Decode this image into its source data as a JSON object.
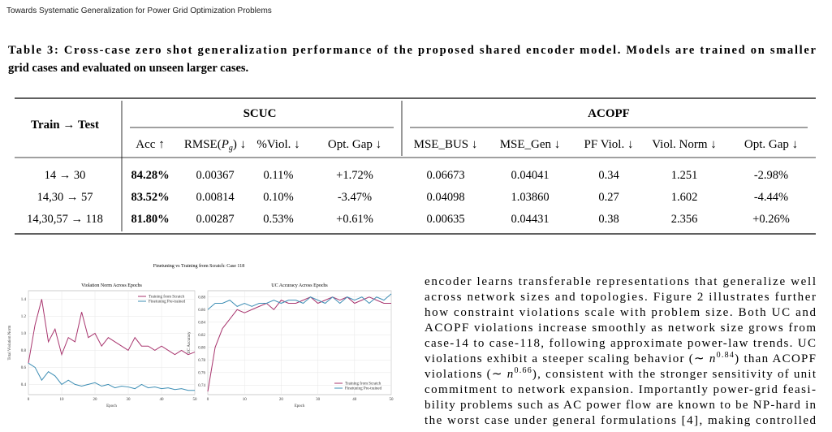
{
  "header": "Towards Systematic Generalization for Power Grid Optimization Problems",
  "table": {
    "caption": [
      "Table 3: Cross-case zero shot generalization performance of the proposed shared encoder model. Models are trained on smaller",
      "grid cases and evaluated on unseen larger cases."
    ],
    "row_header": "Train → Test",
    "groups": [
      "SCUC",
      "ACOPF"
    ],
    "columns": [
      "Acc ↑",
      [
        "RMSE(",
        "P",
        "g",
        ") ↓"
      ],
      "%Viol. ↓",
      "Opt. Gap ↓",
      "MSE_BUS ↓",
      "MSE_Gen ↓",
      "PF Viol. ↓",
      "Viol. Norm ↓",
      "Opt. Gap ↓"
    ],
    "rows": [
      [
        "14 → 30",
        "84.28%",
        "0.00367",
        "0.11%",
        "+1.72%",
        "0.06673",
        "0.04041",
        "0.34",
        "1.251",
        "-2.98%"
      ],
      [
        "14,30 → 57",
        "83.52%",
        "0.00814",
        "0.10%",
        "-3.47%",
        "0.04098",
        "1.03860",
        "0.27",
        "1.602",
        "-4.44%"
      ],
      [
        "14,30,57 → 118",
        "81.80%",
        "0.00287",
        "0.53%",
        "+0.61%",
        "0.00635",
        "0.04431",
        "0.38",
        "2.356",
        "+0.26%"
      ]
    ]
  },
  "figure_title": "Finetuning vs Training from Scratch: Case 118",
  "chart_data": [
    {
      "type": "line",
      "title": "Violation Norm Across Epochs",
      "xlabel": "Epoch",
      "ylabel": "Total Violation Norm",
      "x": [
        0,
        2,
        4,
        6,
        8,
        10,
        12,
        14,
        16,
        18,
        20,
        22,
        24,
        26,
        28,
        30,
        32,
        34,
        36,
        38,
        40,
        42,
        44,
        46,
        48,
        50
      ],
      "series": [
        {
          "name": "Training from Scratch",
          "color": "#a8356e",
          "values": [
            0.65,
            1.1,
            1.4,
            0.9,
            1.05,
            0.75,
            0.95,
            0.9,
            1.25,
            0.95,
            1.0,
            0.85,
            0.95,
            0.9,
            0.85,
            0.8,
            0.95,
            0.85,
            0.85,
            0.8,
            0.85,
            0.8,
            0.75,
            0.8,
            0.75,
            0.78
          ]
        },
        {
          "name": "Finetuning Pre-trained",
          "color": "#3f8fb5",
          "values": [
            0.65,
            0.6,
            0.45,
            0.55,
            0.5,
            0.4,
            0.45,
            0.4,
            0.38,
            0.4,
            0.42,
            0.38,
            0.4,
            0.36,
            0.38,
            0.37,
            0.35,
            0.4,
            0.36,
            0.37,
            0.35,
            0.36,
            0.34,
            0.35,
            0.33,
            0.33
          ]
        }
      ],
      "xlim": [
        0,
        50
      ],
      "ylim": [
        0.28,
        1.5
      ],
      "xticks": [
        0,
        10,
        20,
        30,
        40,
        50
      ],
      "yticks": [
        0.4,
        0.6,
        0.8,
        {
          "value": 1.0,
          "label": "1.0"
        },
        1.2,
        1.4
      ],
      "grid": true,
      "legend": "upper right"
    },
    {
      "type": "line",
      "title": "UC Accuracy Across Epochs",
      "xlabel": "Epoch",
      "ylabel": "UC Accuracy",
      "x": [
        0,
        2,
        4,
        6,
        8,
        10,
        12,
        14,
        16,
        18,
        20,
        22,
        24,
        26,
        28,
        30,
        32,
        34,
        36,
        38,
        40,
        42,
        44,
        46,
        48,
        50
      ],
      "series": [
        {
          "name": "Training from Scratch",
          "color": "#a8356e",
          "values": [
            0.73,
            0.8,
            0.83,
            0.845,
            0.86,
            0.855,
            0.86,
            0.865,
            0.87,
            0.86,
            0.875,
            0.87,
            0.87,
            0.875,
            0.88,
            0.87,
            0.875,
            0.88,
            0.875,
            0.88,
            0.87,
            0.875,
            0.88,
            0.875,
            0.87,
            0.87
          ]
        },
        {
          "name": "Finetuning Pre-trained",
          "color": "#3f8fb5",
          "values": [
            0.86,
            0.87,
            0.87,
            0.875,
            0.865,
            0.87,
            0.865,
            0.87,
            0.87,
            0.875,
            0.87,
            0.875,
            0.875,
            0.87,
            0.88,
            0.875,
            0.87,
            0.88,
            0.87,
            0.88,
            0.875,
            0.88,
            0.87,
            0.88,
            0.875,
            0.885
          ]
        }
      ],
      "xlim": [
        0,
        50
      ],
      "ylim": [
        0.725,
        0.89
      ],
      "xticks": [
        0,
        10,
        20,
        30,
        40,
        50
      ],
      "yticks": [
        0.74,
        0.76,
        0.78,
        {
          "value": 0.8,
          "label": "0.80"
        },
        0.82,
        0.84,
        0.86,
        0.88
      ],
      "grid": true,
      "legend": "lower right"
    }
  ],
  "body": {
    "lines": [
      "encoder learns transferable representations that generalize well",
      "across network sizes and topologies. Figure 2 illustrates further",
      "how constraint violations scale with problem size. Both UC and",
      "ACOPF violations increase smoothly as network size grows from",
      "case-14 to case-118, following approximate power-law trends. UC",
      [
        "violations exhibit a steeper scaling behavior (∼ ",
        "n",
        "0.84",
        ") than ACOPF"
      ],
      [
        "violations (∼ ",
        "n",
        "0.66",
        "), consistent with the stronger sensitivity of unit"
      ],
      "commitment to network expansion. Importantly power-grid feasi-",
      "bility problems such as AC power flow are known to be NP-hard in",
      "the worst case under general formulations [4], making controlled"
    ]
  }
}
